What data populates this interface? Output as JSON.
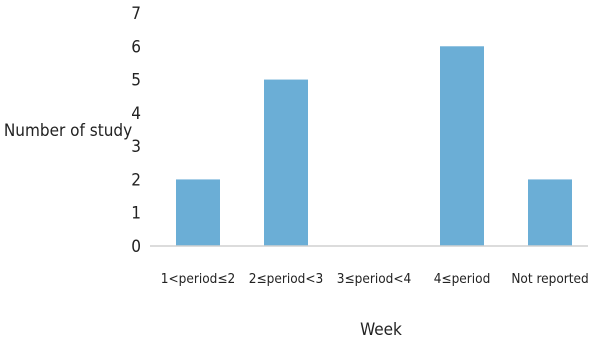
{
  "chart_data": {
    "type": "bar",
    "categories": [
      "1<period≤2",
      "2≤period<3",
      "3≤period<4",
      "4≤period",
      "Not reported"
    ],
    "values": [
      2,
      5,
      0,
      6,
      2
    ],
    "xlabel": "Week",
    "ylabel": "Number of study",
    "ylim": [
      0,
      7
    ],
    "yticks": [
      0,
      1,
      2,
      3,
      4,
      5,
      6,
      7
    ],
    "grid": false,
    "bar_color": "#6baed6",
    "axis_color": "#d0d0d0"
  }
}
